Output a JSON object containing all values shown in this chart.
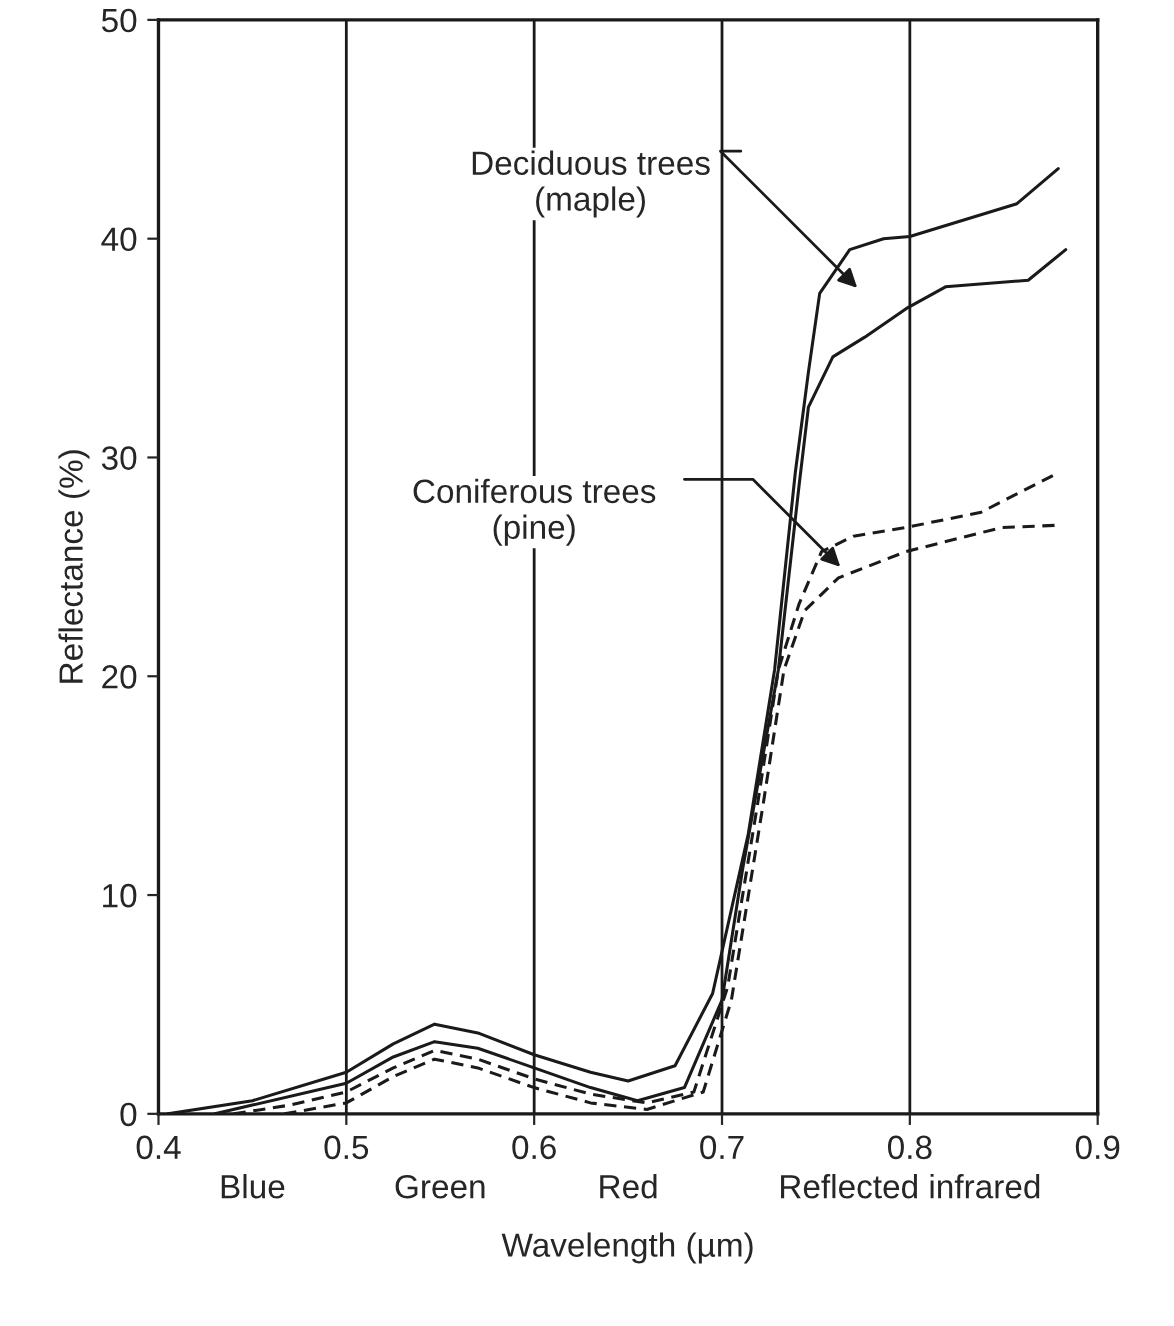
{
  "chart_data": {
    "type": "line",
    "xlabel": "Wavelength (µm)",
    "ylabel": "Reflectance (%)",
    "xlim": [
      0.4,
      0.9
    ],
    "xticks": [
      0.4,
      0.5,
      0.6,
      0.7,
      0.8,
      0.9
    ],
    "ylim": [
      0,
      50
    ],
    "yticks": [
      0,
      10,
      20,
      30,
      40,
      50
    ],
    "grid": "x",
    "marker": "none",
    "series": [
      {
        "color": "#1a1a1a",
        "line_style": "solid",
        "x": [
          0.405,
          0.45,
          0.5,
          0.525,
          0.547,
          0.57,
          0.6,
          0.63,
          0.65,
          0.675,
          0.695,
          0.714,
          0.728,
          0.739,
          0.746,
          0.752,
          0.768,
          0.786,
          0.8,
          0.857,
          0.879
        ],
        "values": [
          0,
          0.6,
          1.9,
          3.2,
          4.1,
          3.7,
          2.7,
          1.9,
          1.5,
          2.2,
          5.5,
          12.8,
          20.3,
          29.3,
          33.9,
          37.5,
          39.5,
          40.0,
          40.1,
          41.6,
          43.2
        ]
      },
      {
        "color": "#1a1a1a",
        "line_style": "solid",
        "x": [
          0.43,
          0.45,
          0.5,
          0.525,
          0.547,
          0.57,
          0.6,
          0.63,
          0.655,
          0.68,
          0.7,
          0.711,
          0.73,
          0.741,
          0.746,
          0.759,
          0.776,
          0.798,
          0.819,
          0.863,
          0.883
        ],
        "values": [
          0,
          0.4,
          1.4,
          2.6,
          3.3,
          3.0,
          2.1,
          1.2,
          0.6,
          1.2,
          5.2,
          11.2,
          20.3,
          28.7,
          32.3,
          34.6,
          35.5,
          36.8,
          37.8,
          38.1,
          39.5
        ]
      },
      {
        "color": "#1a1a1a",
        "line_style": "dashed",
        "x": [
          0.44,
          0.47,
          0.5,
          0.525,
          0.547,
          0.57,
          0.6,
          0.63,
          0.66,
          0.685,
          0.703,
          0.719,
          0.73,
          0.741,
          0.753,
          0.77,
          0.798,
          0.838,
          0.879
        ],
        "values": [
          0,
          0.4,
          1.0,
          2.1,
          2.9,
          2.5,
          1.6,
          0.9,
          0.5,
          1.0,
          5.8,
          14.2,
          20.3,
          23.3,
          25.7,
          26.4,
          26.8,
          27.5,
          29.3
        ]
      },
      {
        "color": "#1a1a1a",
        "line_style": "dashed",
        "x": [
          0.467,
          0.5,
          0.525,
          0.547,
          0.57,
          0.6,
          0.63,
          0.66,
          0.69,
          0.705,
          0.722,
          0.733,
          0.744,
          0.762,
          0.798,
          0.849,
          0.878
        ],
        "values": [
          0,
          0.5,
          1.7,
          2.5,
          2.1,
          1.2,
          0.5,
          0.2,
          1.0,
          5.2,
          14.2,
          20.3,
          23.0,
          24.5,
          25.7,
          26.8,
          26.9
        ]
      }
    ],
    "annotations": [
      "Deciduous trees\n(maple)",
      "Coniferous trees\n(pine)",
      "Blue",
      "Green",
      "Red",
      "Reflected infrared"
    ]
  }
}
